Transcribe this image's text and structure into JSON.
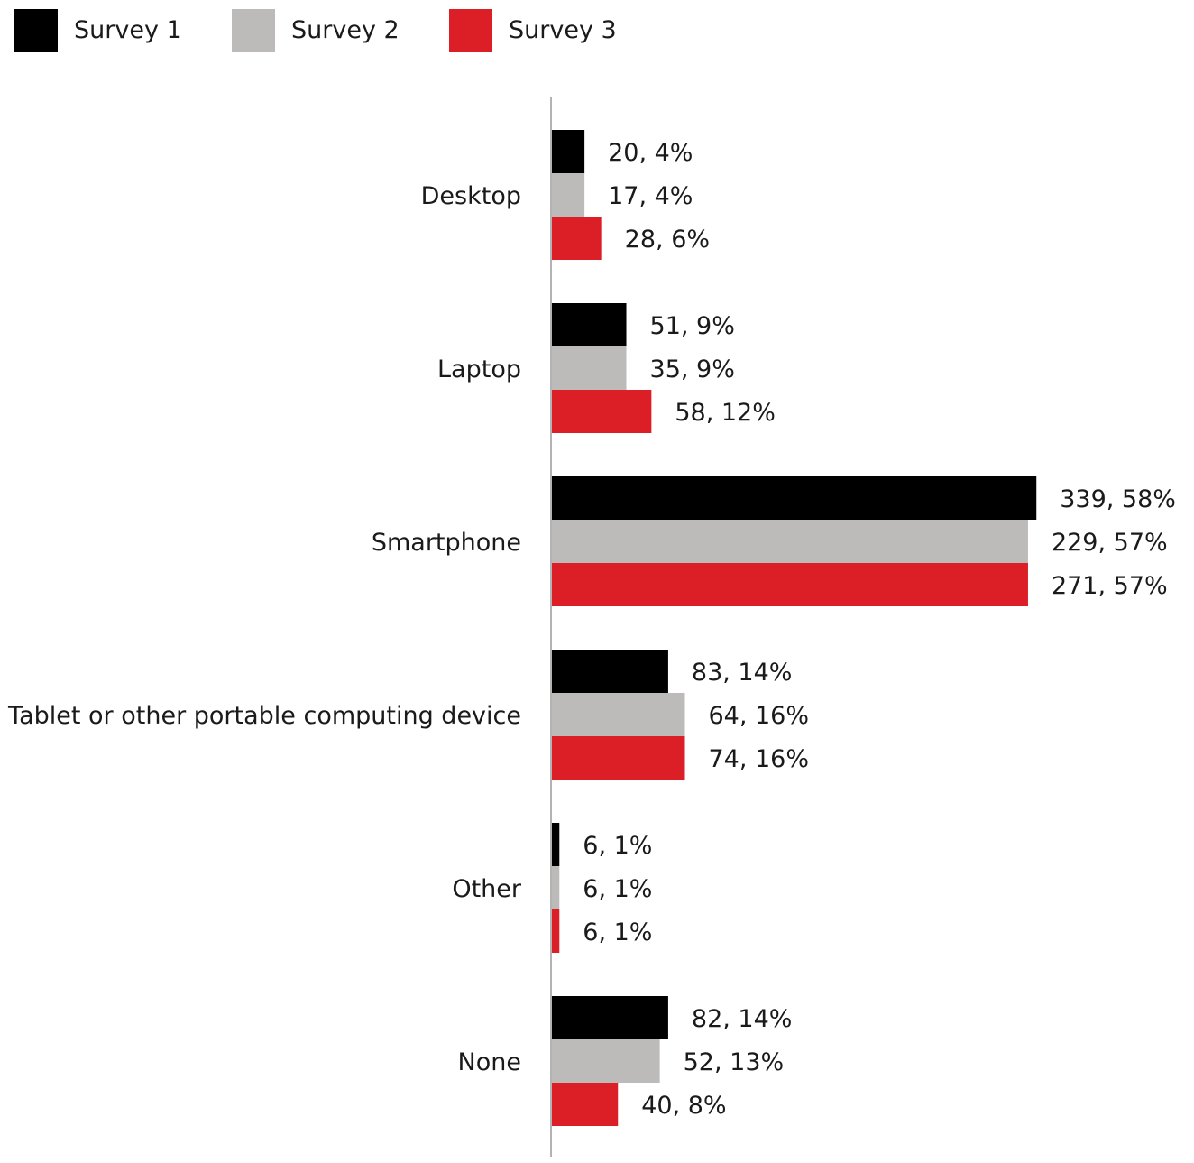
{
  "chart_data": {
    "type": "bar",
    "orientation": "horizontal",
    "categories": [
      "Desktop",
      "Laptop",
      "Smartphone",
      "Tablet or other portable computing device",
      "Other",
      "None"
    ],
    "series": [
      {
        "name": "Survey 1",
        "color": "#000000",
        "values": [
          20,
          51,
          339,
          83,
          6,
          82
        ],
        "percents": [
          4,
          9,
          58,
          14,
          1,
          14
        ],
        "labels": [
          "20, 4%",
          "51, 9%",
          "339, 58%",
          "83, 14%",
          "6, 1%",
          "82, 14%"
        ]
      },
      {
        "name": "Survey 2",
        "color": "#bcbbb9",
        "values": [
          17,
          35,
          229,
          64,
          6,
          52
        ],
        "percents": [
          4,
          9,
          57,
          16,
          1,
          13
        ],
        "labels": [
          "17, 4%",
          "35, 9%",
          "229, 57%",
          "64, 16%",
          "6, 1%",
          "52, 13%"
        ]
      },
      {
        "name": "Survey 3",
        "color": "#dc1f26",
        "values": [
          28,
          58,
          271,
          74,
          6,
          40
        ],
        "percents": [
          6,
          12,
          57,
          16,
          1,
          8
        ],
        "labels": [
          "28, 6%",
          "58, 12%",
          "271, 57%",
          "74, 16%",
          "6, 1%",
          "40, 8%"
        ]
      }
    ],
    "bar_length_basis": "percent",
    "legend_position": "top-left",
    "grid": false,
    "title": "",
    "xlabel": "",
    "ylabel": ""
  }
}
